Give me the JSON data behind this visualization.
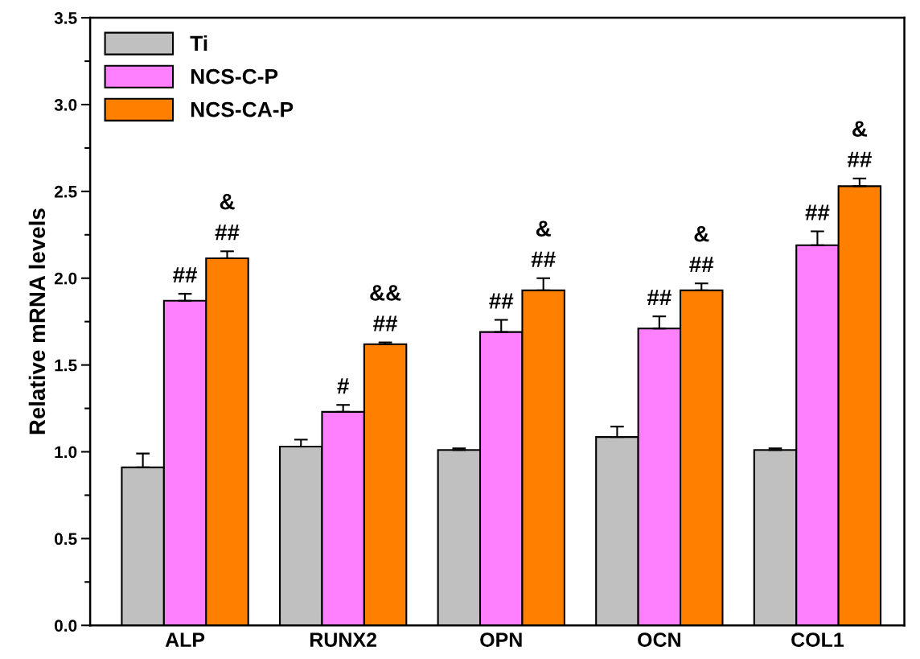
{
  "chart_data": {
    "type": "bar",
    "ylabel": "Relative mRNA levels",
    "categories": [
      "ALP",
      "RUNX2",
      "OPN",
      "OCN",
      "COL1"
    ],
    "series": [
      {
        "name": "Ti",
        "color": "#c0c0c0",
        "values": [
          0.91,
          1.03,
          1.01,
          1.085,
          1.01
        ],
        "errors": [
          0.08,
          0.04,
          0.01,
          0.06,
          0.01
        ]
      },
      {
        "name": "NCS-C-P",
        "color": "#ff80ff",
        "values": [
          1.87,
          1.23,
          1.69,
          1.71,
          2.19
        ],
        "errors": [
          0.04,
          0.04,
          0.07,
          0.07,
          0.08
        ],
        "value_labels": [
          "##",
          "#",
          "##",
          "##",
          "##"
        ]
      },
      {
        "name": "NCS-CA-P",
        "color": "#ff8000",
        "values": [
          2.115,
          1.62,
          1.93,
          1.93,
          2.53
        ],
        "errors": [
          0.04,
          0.01,
          0.07,
          0.04,
          0.045
        ],
        "value_labels": [
          "&\n##",
          "&&\n##",
          "&\n##",
          "&\n##",
          "&\n##"
        ]
      }
    ],
    "ylim": [
      0,
      3.5
    ],
    "yticks": [
      {
        "value": 0,
        "label": "0.0"
      },
      {
        "value": 0.5,
        "label": "0.5"
      },
      {
        "value": 1,
        "label": "1.0"
      },
      {
        "value": 1.5,
        "label": "1.5"
      },
      {
        "value": 2,
        "label": "2.0"
      },
      {
        "value": 2.5,
        "label": "2.5"
      },
      {
        "value": 3,
        "label": "3.0"
      },
      {
        "value": 3.5,
        "label": "3.5"
      }
    ],
    "legend": "top left",
    "grid": false
  }
}
